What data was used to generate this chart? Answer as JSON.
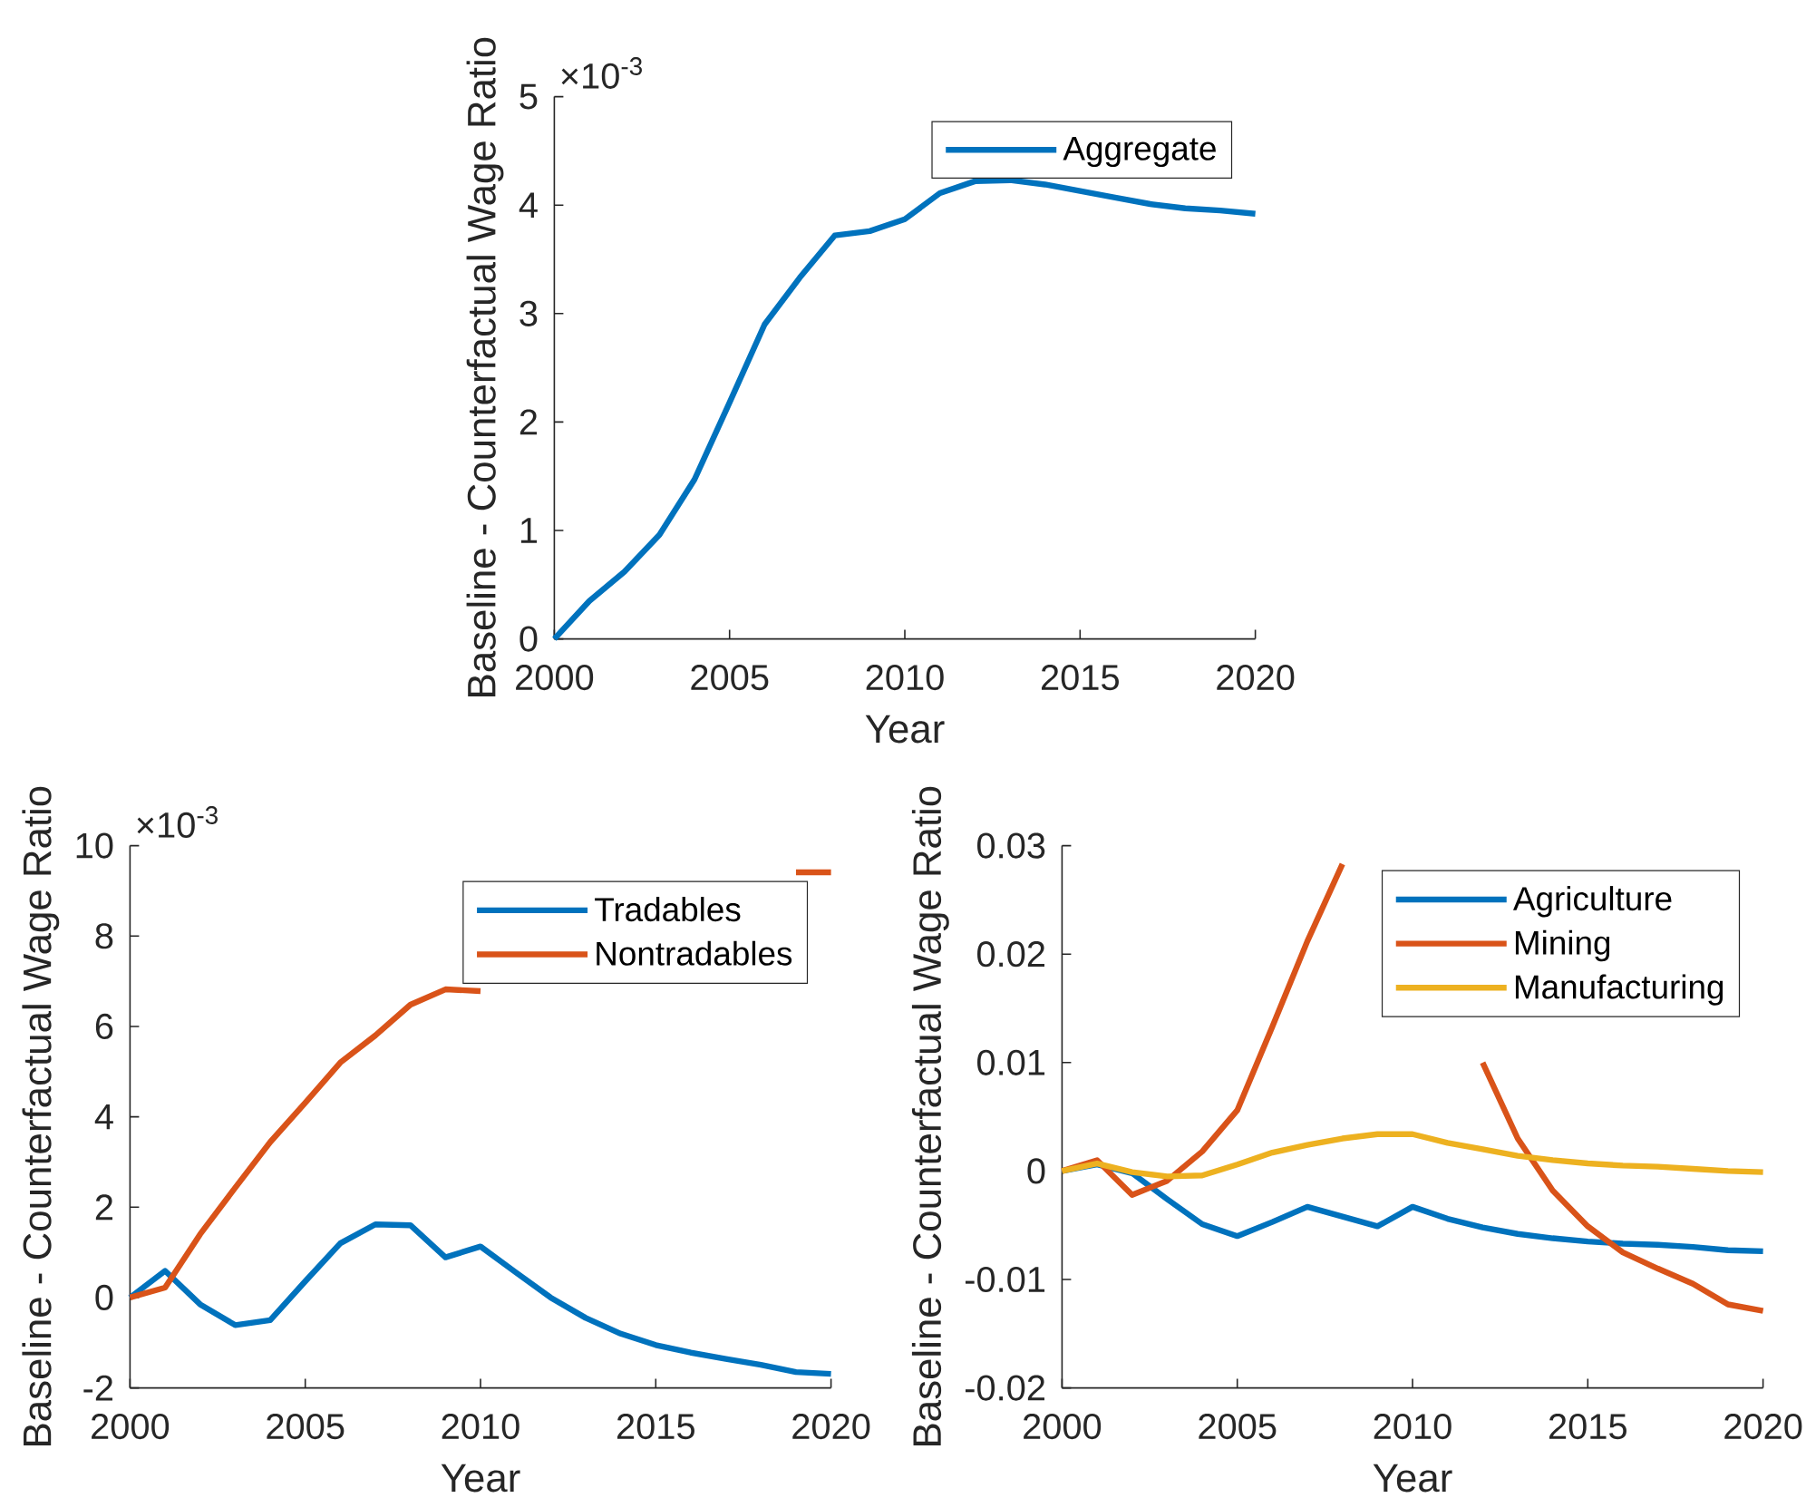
{
  "chart_data": [
    {
      "type": "line",
      "xlabel": "Year",
      "ylabel": "Baseline - Counterfactual Wage Ratio",
      "annotations": [
        "×10$^{-3}$"
      ],
      "x": [
        2000,
        2001,
        2002,
        2003,
        2004,
        2005,
        2006,
        2007,
        2008,
        2009,
        2010,
        2011,
        2012,
        2013,
        2014,
        2015,
        2016,
        2017,
        2018,
        2019,
        2020
      ],
      "xlim": [
        2000,
        2020
      ],
      "xticks": [
        2000,
        2005,
        2010,
        2015,
        2020
      ],
      "ylim": [
        0,
        5
      ],
      "yticks": [
        0,
        1,
        2,
        3,
        4,
        5
      ],
      "legend": "top right",
      "line_style": "solid",
      "series": [
        {
          "name": "Aggregate",
          "color": "#0072bd",
          "values": [
            0,
            0.35,
            0.62,
            0.96,
            1.47,
            2.18,
            2.9,
            3.33,
            3.72,
            3.76,
            3.87,
            4.11,
            4.22,
            4.23,
            4.19,
            4.13,
            4.07,
            4.01,
            3.97,
            3.95,
            3.92
          ]
        }
      ]
    },
    {
      "type": "line",
      "xlabel": "Year",
      "ylabel": "Baseline - Counterfactual Wage Ratio",
      "annotations": [
        "×10$^{-3}$"
      ],
      "x": [
        2000,
        2001,
        2002,
        2003,
        2004,
        2005,
        2006,
        2007,
        2008,
        2009,
        2010,
        2011,
        2012,
        2013,
        2014,
        2015,
        2016,
        2017,
        2018,
        2019,
        2020
      ],
      "xlim": [
        2000,
        2020
      ],
      "xticks": [
        2000,
        2005,
        2010,
        2015,
        2020
      ],
      "ylim": [
        -2,
        10
      ],
      "yticks": [
        -2,
        0,
        2,
        4,
        6,
        8,
        10
      ],
      "legend": "top right",
      "line_style": "solid",
      "series": [
        {
          "name": "Tradables",
          "color": "#0072bd",
          "values": [
            0,
            0.59,
            -0.15,
            -0.61,
            -0.5,
            0.36,
            1.2,
            1.62,
            1.6,
            0.89,
            1.13,
            0.56,
            0,
            -0.45,
            -0.8,
            -1.05,
            -1.22,
            -1.36,
            -1.49,
            -1.65,
            -1.69
          ]
        },
        {
          "name": "Nontradables",
          "color": "#d95319",
          "values": [
            0,
            0.22,
            1.4,
            2.43,
            3.44,
            4.31,
            5.2,
            5.8,
            6.48,
            6.82,
            6.78,
            null,
            null,
            null,
            null,
            null,
            null,
            null,
            null,
            9.41,
            9.41
          ]
        }
      ]
    },
    {
      "type": "line",
      "xlabel": "Year",
      "ylabel": "Baseline - Counterfactual Wage Ratio",
      "x": [
        2000,
        2001,
        2002,
        2003,
        2004,
        2005,
        2006,
        2007,
        2008,
        2009,
        2010,
        2011,
        2012,
        2013,
        2014,
        2015,
        2016,
        2017,
        2018,
        2019,
        2020
      ],
      "xlim": [
        2000,
        2020
      ],
      "xticks": [
        2000,
        2005,
        2010,
        2015,
        2020
      ],
      "ylim": [
        -0.02,
        0.03
      ],
      "yticks": [
        -0.02,
        -0.01,
        0,
        0.01,
        0.02,
        0.03
      ],
      "legend": "top right",
      "line_style": "solid",
      "series": [
        {
          "name": "Agriculture",
          "color": "#0072bd",
          "values": [
            0,
            0.0006,
            -0.0002,
            -0.0026,
            -0.0049,
            -0.006,
            -0.0047,
            -0.0033,
            -0.0042,
            -0.0051,
            -0.0033,
            -0.0044,
            -0.0052,
            -0.0058,
            -0.0062,
            -0.0065,
            -0.0067,
            -0.0068,
            -0.007,
            -0.0073,
            -0.0074
          ]
        },
        {
          "name": "Mining",
          "color": "#d95319",
          "values": [
            0,
            0.001,
            -0.0022,
            -0.0009,
            0.0018,
            0.0056,
            0.0133,
            0.0212,
            0.0283,
            null,
            null,
            null,
            0.01,
            0.003,
            -0.0018,
            -0.0051,
            -0.0075,
            -0.009,
            -0.0104,
            -0.0123,
            -0.0129
          ]
        },
        {
          "name": "Manufacturing",
          "color": "#edb120",
          "values": [
            0,
            0.0007,
            -0.0001,
            -0.0005,
            -0.0004,
            0.0006,
            0.0017,
            0.0024,
            0.003,
            0.0034,
            0.0034,
            0.0026,
            0.002,
            0.0014,
            0.001,
            0.0007,
            0.0005,
            0.0004,
            0.0002,
            0,
            -0.0001
          ]
        }
      ]
    }
  ]
}
